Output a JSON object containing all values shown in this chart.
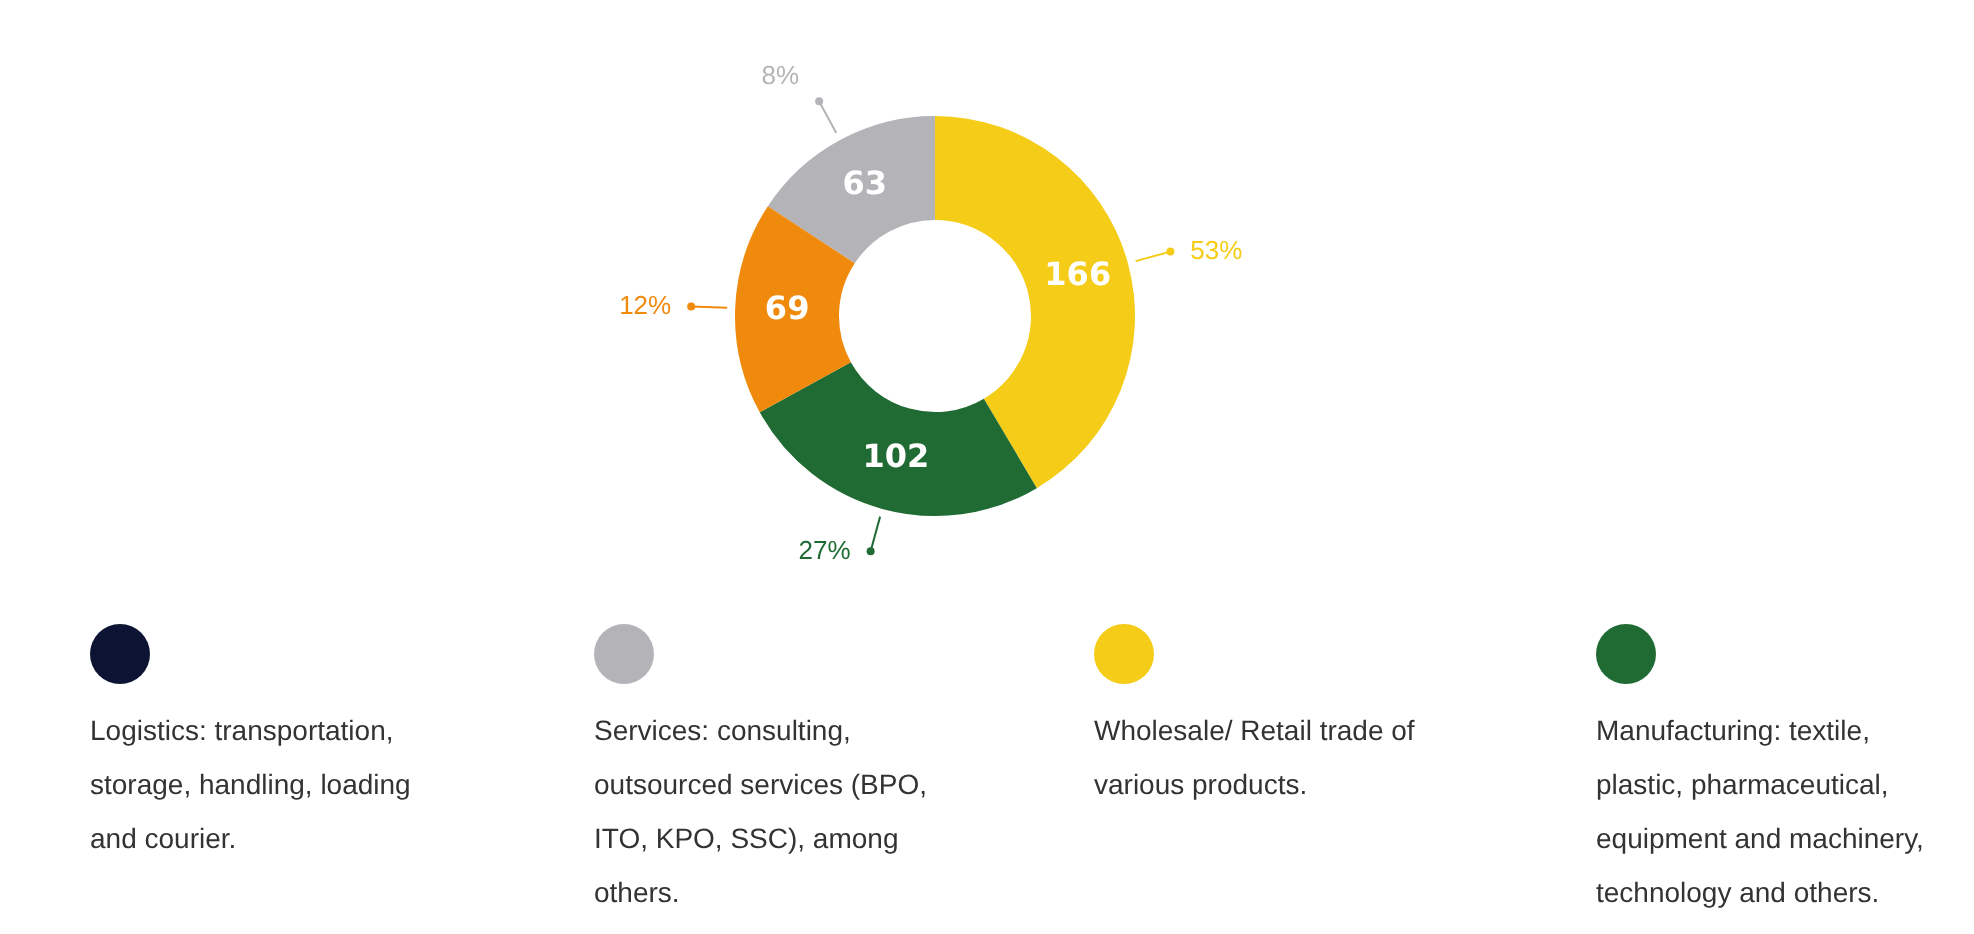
{
  "chart_data": {
    "type": "donut",
    "categories": [
      "Logistics: transportation, storage, handling, loading and courier.",
      "Services: consulting, outsourced services (BPO, ITO, KPO, SSC), among others.",
      "Wholesale/ Retail trade of various products.",
      "Manufacturing: textile, plastic, pharmaceutical, equipment and machinery, technology and others.",
      null
    ],
    "values": [
      null,
      63,
      166,
      102,
      69
    ],
    "colors": [
      "#0d1333",
      "#b4b4b8",
      "#f5cc17",
      "#1f6b33",
      "#f08a0c"
    ],
    "data_labels": true,
    "annotations": [
      "8%",
      "53%",
      "27%",
      "12%"
    ],
    "legend": "bottom"
  }
}
